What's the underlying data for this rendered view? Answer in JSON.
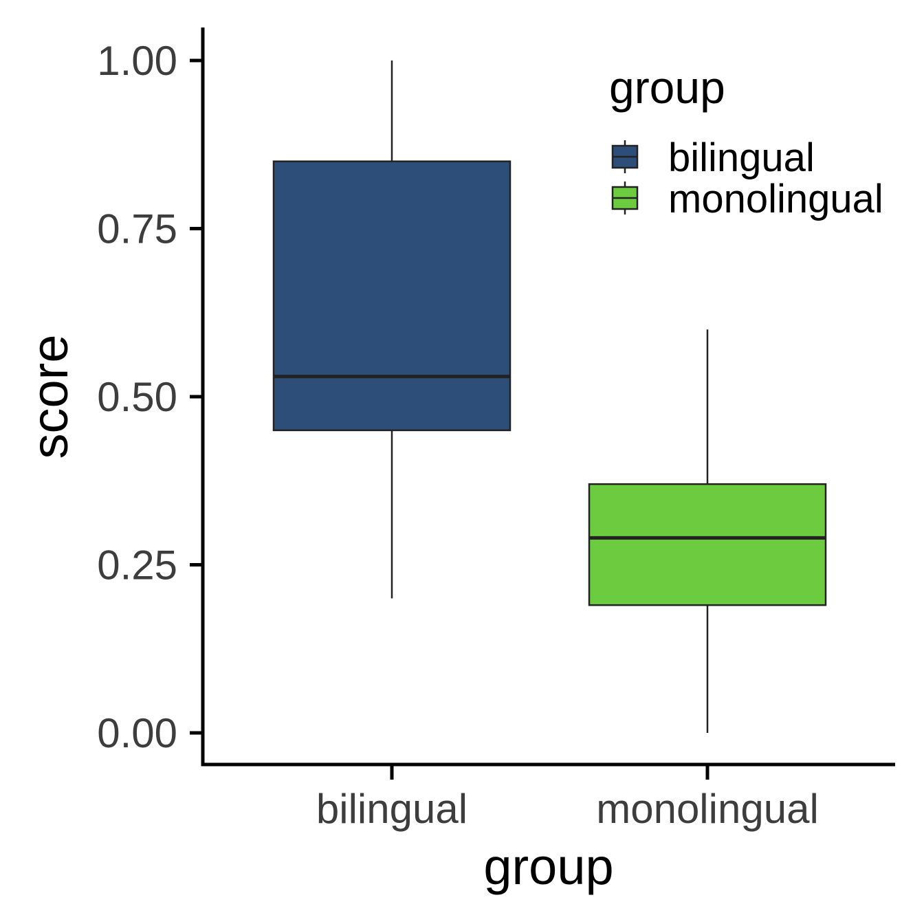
{
  "chart_data": {
    "type": "box",
    "title": "",
    "xlabel": "group",
    "ylabel": "score",
    "ylim": [
      0,
      1
    ],
    "yticks": [
      {
        "value": 0,
        "label": "0.00"
      },
      {
        "value": 0.25,
        "label": "0.25"
      },
      {
        "value": 0.5,
        "label": "0.50"
      },
      {
        "value": 0.75,
        "label": "0.75"
      },
      {
        "value": 1,
        "label": "1.00"
      }
    ],
    "categories": [
      "bilingual",
      "monolingual"
    ],
    "boxes": [
      {
        "name": "bilingual",
        "min": 0.2,
        "q1": 0.45,
        "median": 0.53,
        "q3": 0.85,
        "max": 1.0,
        "color": "#2c4e79"
      },
      {
        "name": "monolingual",
        "min": 0.0,
        "q1": 0.19,
        "median": 0.29,
        "q3": 0.37,
        "max": 0.6,
        "color": "#6ccb3f"
      }
    ],
    "legend": {
      "title": "group",
      "position": "top-right",
      "entries": [
        "bilingual",
        "monolingual"
      ]
    },
    "grid": false
  }
}
